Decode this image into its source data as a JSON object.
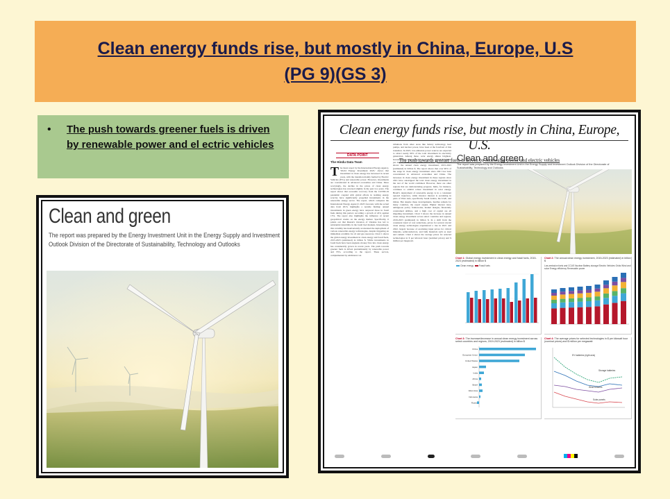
{
  "slide": {
    "title_line1": "Clean energy funds rise, but mostly in China, Europe, U.S",
    "title_line2": "(PG 9)(GS 3)",
    "bullet": "The push towards greener fuels is driven by renewable power and el ectric vehicles"
  },
  "left_image": {
    "heading": "Clean and green",
    "subheading": "The report was prepared by the Energy Investment Unit in the Energy Supply and Investment Outlook Division of the Directorate of Sustainability, Technology and Outlooks"
  },
  "newspaper": {
    "headline": "Clean energy funds rise, but mostly in China, Europe, U.S.",
    "subheadline": "The push towards greener fuels is driven by renewable power and electric vehicles",
    "badge": "DATA POINT",
    "byline": "The Hindu Data Team",
    "col1_text": "he latest report by the International Energy Agency, 'World Energy Investment 2023,' shows that investment in clean energy has increased in recent years, with the transition mainly fuelled by Electric Vehicles (EVs) and renewable power. However, investments are concentrated in advanced economies and China. More worryingly, the decline in the prices of clean energy technologies has reversed slightly in the past two years. The report shows that economic recovery from the COVID-19 pandemic coupled with global efforts in tackling energy scarcity have significantly propelled investments in the renewable energy sector. The report, which compares the International Energy Agency's 2023 forecasts with the actual data from 2015, highlights a notable finding: annual investments in green energy have outpaced those in fossil fuels during this period, recording a growth of 24% against 15%. The report also highlights the influence of recent geopolitical events on the energy market. Specifically, it points out that Russia's invasion of Ukraine has led to substantial instability in the fossil fuel markets. Interestingly, this volatility has inadvertently accelerated the deployment of various renewable energy technologies, despite triggering an immediate scramble for oil and gas resources. Chart 1 shows the global energy investment in clean energy and fossil fuels, 2015-2023 (estimated) in billion $. While investments in fossil fuels have been stagnant, money flow into clean energy has considerably grown in recent years. The push towards greener fuels is driven predominantly by renewable power and EVs, according to the report. These sectors, complemented by additional con",
    "col2_text": "tributions from other areas like battery technology, heat pumps, and nuclear power, have been at the forefront of this transition. In 2023, low-emission power sources are expected to attract nearly 90% of the total investment in electricity generation. Among these, solar energy shines brightest. Investment in solar energy is projected to exceed $1 billion per day in 2023, totaling $380 billion for the year. Chart 2 shows the annual clean energy investment, 2015-2023 (estimated) in billion $. The report shows that over 90% of the surge in clean energy investment since 2021 has been concentrated in advanced economies and China. The increases in clean energy investment in these regions since 2021 have outstripped the total clean energy investment in the rest of the world combined. However, there are other regions that are demonstrating progress. India, for instance, continues to exhibit robust investment in solar energy. Brazil's deployment of renewable energy is in a consistent upward trajectory, while investor interest is escalating in parts of West Asia, specifically Saudi Arabia, the UAE, and Oman. But despite these developments, hurdles remain for many countries, the report argues. Higher interest rates, ambiguous policy frameworks, market designs, financially constrained utilities, and a high cost of capital are all impeding investment. Chart 3 shows the increase in annual clean energy investment across select countries and regions, 2019-2023 (estimated) in billion $. In a shift from the consistent trend of cost reductions, prices for several crucial clean energy technologies experienced a rise in 2021 and 2022, largely because of escalating input prices for critical minerals, semiconductors, and bulk materials such as steel and cement. Chart 4 shows the average prices for selected technologies in $ per kilowatt hour (nominal prices) and $ million per megawatt.",
    "right_heading": "Clean and green",
    "right_sub": "The report was prepared by the Energy Investment Unit in the Energy Supply and Investment Outlook Division of the Directorate of Sustainability, Technology and Outlooks",
    "chart1_cap_bold": "Chart 1:",
    "chart1_cap": "Global energy investment in clean energy and fossil fuels, 2015-2023 (estimated) in billion $",
    "chart1_leg_a": "Clean energy",
    "chart1_leg_b": "Fossil fuels",
    "chart2_cap_bold": "Chart 2:",
    "chart2_cap": "The annual clean energy investment, 2015-2023 (estimated) in billion $",
    "chart2_leg": "Low-emission fuels and CCUS  Nuclear  Battery storage  Electric Vehicles  Grids  Wind and solar  Energy efficiency  Renewable power",
    "chart3_cap_bold": "Chart 3:",
    "chart3_cap": "The increase/decrease in annual clean energy investment across select countries and regions, 2019-2023 (estimated) in billion $",
    "chart3_regions": [
      "China",
      "European Union",
      "United States",
      "Japan",
      "India",
      "Africa",
      "Brazil",
      "West Asia",
      "Indonesia",
      "Russia"
    ],
    "chart4_cap_bold": "Chart 4:",
    "chart4_cap": "The average prices for selected technologies in $ per kilowatt hour (nominal prices) and $ million per megawatt",
    "chart4_labels": [
      "EV batteries (right axis)",
      "Storage batteries",
      "Wind turbines",
      "Solar panels"
    ]
  },
  "colors": {
    "title_bg": "#f5ad55",
    "bullet_bg": "#a9c98f",
    "page_bg": "#fdf6d3",
    "accent_red": "#b02233",
    "clean": "#3fa7d6",
    "fossil": "#b5172b"
  }
}
